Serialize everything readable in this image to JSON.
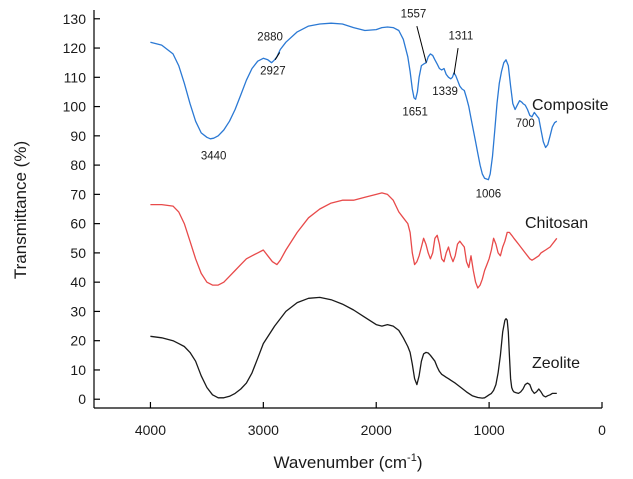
{
  "chart_data": {
    "type": "line",
    "title": "",
    "xlabel": "Wavenumber (cm",
    "xlabel_sup": "-1",
    "xlabel_tail": ")",
    "ylabel": "Transmittance (%)",
    "xlim": [
      4500,
      0
    ],
    "ylim": [
      -3,
      133
    ],
    "xticks": [
      4000,
      3000,
      2000,
      1000,
      0
    ],
    "yticks": [
      0,
      10,
      20,
      30,
      40,
      50,
      60,
      70,
      80,
      90,
      100,
      110,
      120,
      130
    ],
    "grid": false,
    "series": [
      {
        "name": "Composite",
        "color": "#2b79d4",
        "label_pos": [
          620,
          110
        ],
        "x": [
          4000,
          3900,
          3800,
          3750,
          3700,
          3650,
          3600,
          3550,
          3500,
          3470,
          3440,
          3400,
          3350,
          3300,
          3250,
          3200,
          3150,
          3100,
          3050,
          3000,
          2960,
          2927,
          2900,
          2880,
          2850,
          2800,
          2700,
          2600,
          2500,
          2400,
          2300,
          2200,
          2100,
          2000,
          1950,
          1900,
          1850,
          1800,
          1760,
          1720,
          1700,
          1680,
          1665,
          1651,
          1635,
          1620,
          1600,
          1580,
          1557,
          1540,
          1520,
          1500,
          1480,
          1460,
          1440,
          1420,
          1400,
          1380,
          1360,
          1339,
          1325,
          1311,
          1295,
          1280,
          1260,
          1240,
          1220,
          1200,
          1180,
          1160,
          1140,
          1120,
          1100,
          1080,
          1060,
          1040,
          1020,
          1006,
          990,
          970,
          950,
          930,
          910,
          890,
          870,
          850,
          830,
          810,
          790,
          770,
          750,
          730,
          710,
          700,
          680,
          660,
          640,
          620,
          600,
          580,
          560,
          540,
          520,
          500,
          480,
          460,
          440,
          420,
          400
        ],
        "y": [
          122,
          121,
          118,
          114,
          108,
          101,
          95,
          91,
          89.5,
          89,
          89.2,
          90,
          92,
          95,
          99,
          104,
          109,
          113,
          115.5,
          116.5,
          116,
          115,
          116,
          117,
          119.5,
          122,
          125.5,
          127.5,
          128.2,
          128.5,
          128.2,
          127,
          126,
          126.3,
          127,
          127.2,
          127,
          126,
          123,
          117,
          112,
          106,
          103,
          102.5,
          105,
          110,
          114,
          114.5,
          115,
          117,
          118,
          117.5,
          116,
          114.5,
          113,
          112.5,
          113,
          111,
          110,
          109.5,
          110,
          111.5,
          110.5,
          109,
          107,
          106,
          105.5,
          103,
          100,
          96,
          92,
          88,
          84,
          80,
          77,
          75.5,
          75.2,
          75,
          77,
          83,
          92,
          101,
          108,
          112,
          115,
          116,
          114,
          107,
          101,
          99,
          100.5,
          102,
          101.5,
          101,
          100.5,
          99,
          97,
          96.5,
          98,
          97,
          96,
          92,
          88,
          86,
          87,
          90,
          93,
          94.5,
          95
        ]
      },
      {
        "name": "Chitosan",
        "color": "#e84a4a",
        "label_pos": [
          610,
          228
        ],
        "x": [
          4000,
          3900,
          3800,
          3750,
          3700,
          3650,
          3600,
          3550,
          3500,
          3450,
          3400,
          3350,
          3300,
          3250,
          3200,
          3150,
          3100,
          3050,
          3000,
          2960,
          2920,
          2880,
          2850,
          2800,
          2700,
          2600,
          2500,
          2400,
          2300,
          2200,
          2100,
          2000,
          1950,
          1900,
          1850,
          1800,
          1760,
          1720,
          1700,
          1680,
          1660,
          1640,
          1620,
          1600,
          1580,
          1560,
          1540,
          1520,
          1500,
          1480,
          1460,
          1440,
          1420,
          1400,
          1380,
          1360,
          1340,
          1320,
          1300,
          1280,
          1260,
          1240,
          1220,
          1200,
          1180,
          1160,
          1140,
          1120,
          1100,
          1080,
          1060,
          1040,
          1020,
          1000,
          980,
          960,
          940,
          920,
          900,
          880,
          860,
          840,
          820,
          800,
          780,
          760,
          740,
          720,
          700,
          680,
          660,
          640,
          620,
          600,
          580,
          560,
          540,
          520,
          500,
          480,
          460,
          440,
          420,
          400
        ],
        "y": [
          66.5,
          66.5,
          66,
          64,
          60,
          54,
          48,
          43,
          40,
          39,
          39,
          40,
          42,
          44,
          46,
          48,
          49,
          50,
          51,
          49,
          47,
          46,
          47.5,
          51,
          57,
          62,
          65,
          67,
          68,
          68,
          69,
          70,
          70.5,
          70,
          68,
          64,
          62,
          60,
          57,
          50,
          46,
          47,
          49,
          52,
          55,
          53,
          50,
          48,
          50,
          55,
          56,
          53,
          48,
          47,
          50,
          52,
          49,
          47,
          49,
          53,
          54,
          53,
          52,
          47,
          45,
          49,
          44,
          40,
          38,
          39,
          41,
          44,
          46,
          48,
          51,
          55,
          53,
          50,
          49,
          52,
          54,
          57,
          57,
          56,
          55,
          54,
          53,
          52,
          51,
          50,
          49,
          48,
          47.5,
          48,
          48.5,
          49,
          50,
          50.5,
          51,
          51.5,
          52,
          53,
          54,
          55
        ]
      },
      {
        "name": "Zeolite",
        "color": "#1a1a1a",
        "label_pos": [
          610,
          368
        ],
        "x": [
          4000,
          3900,
          3800,
          3750,
          3700,
          3650,
          3600,
          3550,
          3500,
          3450,
          3400,
          3350,
          3300,
          3250,
          3200,
          3150,
          3100,
          3050,
          3000,
          2900,
          2800,
          2700,
          2600,
          2500,
          2400,
          2300,
          2200,
          2100,
          2000,
          1950,
          1900,
          1850,
          1800,
          1760,
          1720,
          1700,
          1680,
          1660,
          1640,
          1620,
          1600,
          1580,
          1560,
          1540,
          1520,
          1500,
          1480,
          1460,
          1440,
          1420,
          1400,
          1380,
          1360,
          1340,
          1300,
          1250,
          1200,
          1150,
          1100,
          1060,
          1040,
          1020,
          1000,
          980,
          960,
          940,
          920,
          900,
          880,
          860,
          850,
          840,
          830,
          820,
          810,
          800,
          790,
          780,
          760,
          740,
          720,
          700,
          680,
          660,
          640,
          620,
          600,
          580,
          560,
          540,
          520,
          500,
          480,
          460,
          440,
          420,
          400
        ],
        "y": [
          21.5,
          21,
          20,
          19,
          18,
          16,
          13,
          8,
          4,
          1.5,
          0.5,
          0.5,
          1,
          2,
          3.5,
          5.5,
          9,
          14,
          19,
          25,
          30,
          33,
          34.5,
          34.8,
          34,
          32.5,
          30.5,
          28,
          25.5,
          25,
          25.5,
          25,
          23.5,
          21,
          18,
          16,
          12,
          7,
          5,
          8,
          13,
          15.5,
          16,
          15.8,
          15,
          14,
          13,
          11,
          9.5,
          8.5,
          8,
          7.5,
          7,
          6.5,
          5.5,
          4,
          2.5,
          1.2,
          0.6,
          0.4,
          0.5,
          1,
          1.5,
          2,
          3,
          5,
          9,
          15,
          23,
          27,
          27.5,
          27,
          23,
          15,
          7,
          4,
          3,
          2.5,
          2.2,
          2,
          2.5,
          3.5,
          5,
          5.5,
          5,
          3,
          2,
          2.5,
          3.5,
          2.5,
          1.2,
          0.8,
          1.2,
          1.5,
          2,
          2,
          2
        ]
      }
    ],
    "annotations": [
      {
        "text": "3440",
        "pos": [
          3440,
          82
        ]
      },
      {
        "text": "2880",
        "pos": [
          2940,
          122.5
        ]
      },
      {
        "text": "2927",
        "pos": [
          2915,
          111
        ]
      },
      {
        "text": "1557",
        "pos": [
          1670,
          130.5
        ]
      },
      {
        "text": "1651",
        "pos": [
          1655,
          97
        ]
      },
      {
        "text": "1339",
        "pos": [
          1390,
          104
        ]
      },
      {
        "text": "1311",
        "pos": [
          1250,
          123
        ]
      },
      {
        "text": "1006",
        "pos": [
          1006,
          69
        ]
      },
      {
        "text": "700",
        "pos": [
          680,
          93
        ]
      }
    ],
    "leaders": [
      {
        "from": [
          2855,
          118.5
        ],
        "to": [
          2895,
          116
        ]
      },
      {
        "from": [
          1640,
          127.5
        ],
        "to": [
          1557,
          115
        ]
      },
      {
        "from": [
          1275,
          120
        ],
        "to": [
          1311,
          111
        ]
      }
    ]
  }
}
